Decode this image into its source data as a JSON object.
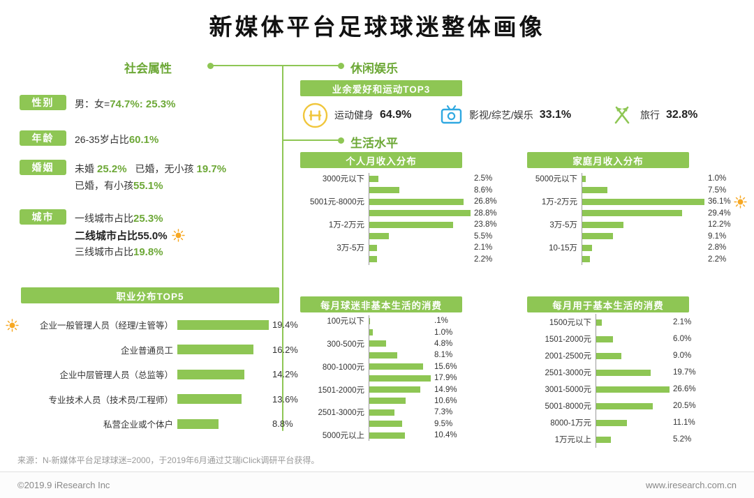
{
  "title": "新媒体平台足球球迷整体画像",
  "colors": {
    "green": "#8ec654",
    "green_dark": "#6da837",
    "sun_orange": "#f7a823",
    "icon_yellow": "#f0c63c",
    "video_blue": "#2fa8e1"
  },
  "social": {
    "header": "社会属性",
    "gender": {
      "tag": "性别",
      "prefix": "男：女=",
      "value": "74.7%: 25.3%"
    },
    "age": {
      "tag": "年龄",
      "prefix": "26-35岁占比",
      "value": "60.1%"
    },
    "marriage": {
      "tag": "婚姻",
      "line1_a": "未婚",
      "line1_b": "25.2%",
      "line1_c": "已婚，无小孩",
      "line1_d": "19.7%",
      "line2_a": "已婚，有小孩",
      "line2_b": "55.1%"
    },
    "city": {
      "tag": "城市",
      "tier1_label": "一线城市占比",
      "tier1_value": "25.3%",
      "tier2_text": "二线城市占比55.0%",
      "tier3_label": "三线城市占比",
      "tier3_value": "19.8%"
    }
  },
  "leisure": {
    "header": "休闲娱乐",
    "banner": "业余爱好和运动TOP3",
    "items": [
      {
        "icon": "fitness-icon",
        "label": "运动健身",
        "value": "64.9%"
      },
      {
        "icon": "video-icon",
        "label": "影视/综艺/娱乐",
        "value": "33.1%"
      },
      {
        "icon": "travel-icon",
        "label": "旅行",
        "value": "32.8%"
      }
    ]
  },
  "living": {
    "header": "生活水平"
  },
  "chart_data": [
    {
      "type": "bar",
      "orientation": "horizontal",
      "title": "职业分布TOP5",
      "categories": [
        "企业一般管理人员（经理/主管等）",
        "企业普通员工",
        "企业中层管理人员（总监等）",
        "专业技术人员（技术员/工程师）",
        "私营企业或个体户"
      ],
      "values": [
        19.4,
        16.2,
        14.2,
        13.6,
        8.8
      ],
      "labels": [
        "19.4%",
        "16.2%",
        "14.2%",
        "13.6%",
        "8.8%"
      ],
      "highlight_index": 0
    },
    {
      "type": "bar",
      "orientation": "horizontal",
      "title": "个人月收入分布",
      "categories": [
        "3000元以下",
        "",
        "5001元-8000元",
        "",
        "1万-2万元",
        "",
        "3万-5万",
        ""
      ],
      "values": [
        2.5,
        8.6,
        26.8,
        28.8,
        23.8,
        5.5,
        2.1,
        2.2
      ],
      "labels": [
        "2.5%",
        "8.6%",
        "26.8%",
        "28.8%",
        "23.8%",
        "5.5%",
        "2.1%",
        "2.2%"
      ]
    },
    {
      "type": "bar",
      "orientation": "horizontal",
      "title": "家庭月收入分布",
      "categories": [
        "5000元以下",
        "",
        "1万-2万元",
        "",
        "3万-5万",
        "",
        "10-15万",
        ""
      ],
      "values": [
        1.0,
        7.5,
        36.1,
        29.4,
        12.2,
        9.1,
        2.8,
        2.2
      ],
      "labels": [
        "1.0%",
        "7.5%",
        "36.1%",
        "29.4%",
        "12.2%",
        "9.1%",
        "2.8%",
        "2.2%"
      ],
      "marker_index": 2
    },
    {
      "type": "bar",
      "orientation": "horizontal",
      "title": "每月球迷非基本生活的消费",
      "categories": [
        "100元以下",
        "",
        "300-500元",
        "",
        "800-1000元",
        "",
        "1501-2000元",
        "",
        "2501-3000元",
        "",
        "5000元以上"
      ],
      "values": [
        0.1,
        1.0,
        4.8,
        8.1,
        15.6,
        17.9,
        14.9,
        10.6,
        7.3,
        9.5,
        10.4
      ],
      "labels": [
        ".1%",
        "1.0%",
        "4.8%",
        "8.1%",
        "15.6%",
        "17.9%",
        "14.9%",
        "10.6%",
        "7.3%",
        "9.5%",
        "10.4%"
      ]
    },
    {
      "type": "bar",
      "orientation": "horizontal",
      "title": "每月用于基本生活的消费",
      "categories": [
        "1500元以下",
        "1501-2000元",
        "2001-2500元",
        "2501-3000元",
        "3001-5000元",
        "5001-8000元",
        "8000-1万元",
        "1万元以上"
      ],
      "values": [
        2.1,
        6.0,
        9.0,
        19.7,
        26.6,
        20.5,
        11.1,
        5.2
      ],
      "labels": [
        "2.1%",
        "6.0%",
        "9.0%",
        "19.7%",
        "26.6%",
        "20.5%",
        "11.1%",
        "5.2%"
      ]
    }
  ],
  "source": "来源：N-新媒体平台足球球迷=2000，于2019年6月通过艾瑞iClick调研平台获得。",
  "footer": {
    "left": "©2019.9 iResearch Inc",
    "right": "www.iresearch.com.cn"
  }
}
